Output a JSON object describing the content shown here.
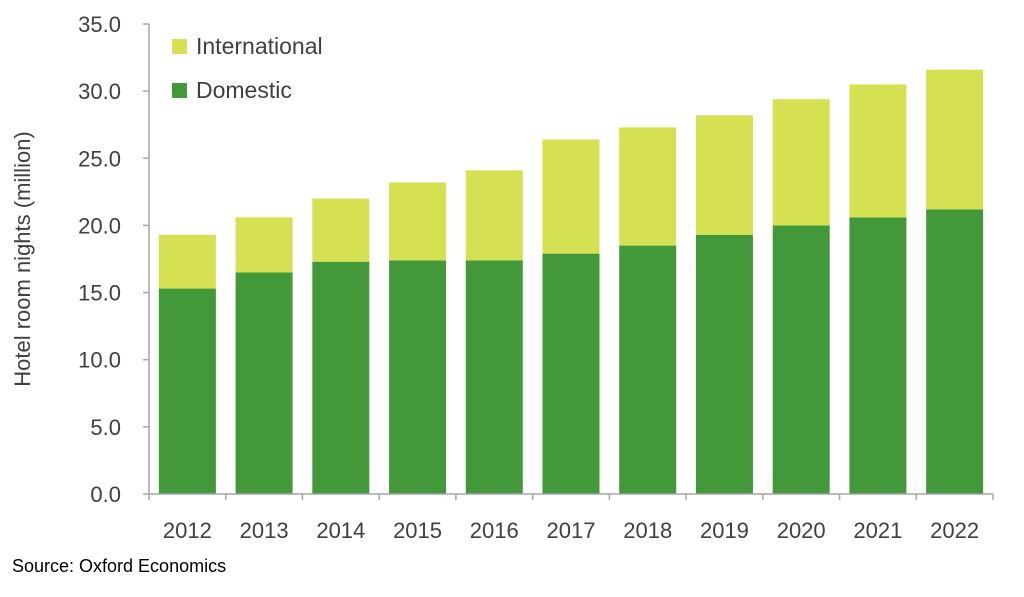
{
  "chart_data": {
    "type": "bar",
    "stacked": true,
    "categories": [
      "2012",
      "2013",
      "2014",
      "2015",
      "2016",
      "2017",
      "2018",
      "2019",
      "2020",
      "2021",
      "2022"
    ],
    "series": [
      {
        "name": "Domestic",
        "color": "#43993a",
        "values": [
          15.3,
          16.5,
          17.3,
          17.4,
          17.4,
          17.9,
          18.5,
          19.3,
          20.0,
          20.6,
          21.2
        ]
      },
      {
        "name": "International",
        "color": "#d5e052",
        "values": [
          4.0,
          4.1,
          4.7,
          5.8,
          6.7,
          8.5,
          8.8,
          8.9,
          9.4,
          9.9,
          10.4
        ]
      }
    ],
    "ylabel": "Hotel room nights (million)",
    "ylim": [
      0,
      35
    ],
    "yticks": [
      "0.0",
      "5.0",
      "10.0",
      "15.0",
      "20.0",
      "25.0",
      "30.0",
      "35.0"
    ],
    "grid": false,
    "legend": {
      "placement": "top-left",
      "order": [
        "International",
        "Domestic"
      ]
    }
  },
  "source_note": "Source: Oxford Economics"
}
